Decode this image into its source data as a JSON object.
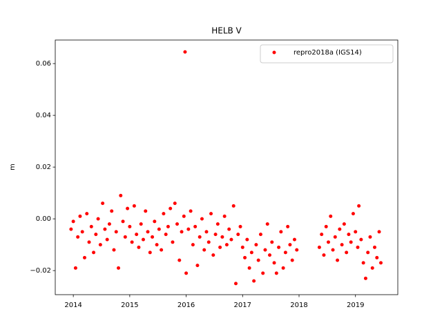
{
  "chart_data": {
    "type": "scatter",
    "title": "HELB V",
    "y_label": "m",
    "legend": "upper right",
    "grid": false,
    "xlim": [
      2013.68,
      2019.75
    ],
    "xticks": [
      2014,
      2015,
      2016,
      2017,
      2018,
      2019
    ],
    "ylim": [
      -0.0293,
      0.0691
    ],
    "yticks": [
      {
        "value": -0.02,
        "label": "−0.02"
      },
      {
        "value": 0,
        "label": "0.00"
      },
      0.02,
      0.04,
      0.06
    ],
    "series": [
      {
        "name": "repro2018a (IGS14)",
        "color": "#ff0000",
        "x": [
          2013.96,
          2014.0,
          2014.04,
          2014.08,
          2014.12,
          2014.16,
          2014.2,
          2014.24,
          2014.28,
          2014.32,
          2014.36,
          2014.4,
          2014.44,
          2014.48,
          2014.52,
          2014.56,
          2014.6,
          2014.64,
          2014.68,
          2014.72,
          2014.76,
          2014.8,
          2014.84,
          2014.88,
          2014.92,
          2014.96,
          2015.0,
          2015.04,
          2015.08,
          2015.12,
          2015.16,
          2015.2,
          2015.24,
          2015.28,
          2015.32,
          2015.36,
          2015.4,
          2015.44,
          2015.48,
          2015.52,
          2015.56,
          2015.6,
          2015.64,
          2015.68,
          2015.72,
          2015.76,
          2015.8,
          2015.84,
          2015.88,
          2015.92,
          2015.96,
          2015.98,
          2016.0,
          2016.04,
          2016.08,
          2016.12,
          2016.16,
          2016.2,
          2016.24,
          2016.28,
          2016.32,
          2016.36,
          2016.4,
          2016.44,
          2016.48,
          2016.52,
          2016.56,
          2016.6,
          2016.64,
          2016.68,
          2016.72,
          2016.76,
          2016.8,
          2016.84,
          2016.88,
          2016.92,
          2016.96,
          2017.0,
          2017.04,
          2017.08,
          2017.12,
          2017.16,
          2017.2,
          2017.24,
          2017.28,
          2017.32,
          2017.36,
          2017.4,
          2017.44,
          2017.48,
          2017.52,
          2017.56,
          2017.6,
          2017.64,
          2017.68,
          2017.72,
          2017.76,
          2017.8,
          2017.84,
          2017.88,
          2017.92,
          2017.96,
          2018.36,
          2018.4,
          2018.44,
          2018.48,
          2018.52,
          2018.56,
          2018.6,
          2018.64,
          2018.68,
          2018.72,
          2018.76,
          2018.8,
          2018.84,
          2018.88,
          2018.92,
          2018.96,
          2019.0,
          2019.04,
          2019.06,
          2019.1,
          2019.14,
          2019.18,
          2019.22,
          2019.26,
          2019.3,
          2019.34,
          2019.38,
          2019.42,
          2019.45
        ],
        "values": [
          -0.004,
          -0.001,
          -0.019,
          -0.007,
          0.001,
          -0.005,
          -0.015,
          0.002,
          -0.009,
          -0.003,
          -0.013,
          -0.006,
          0.0,
          -0.01,
          0.006,
          -0.004,
          -0.008,
          -0.002,
          0.003,
          -0.012,
          -0.005,
          -0.019,
          0.009,
          -0.001,
          -0.007,
          0.004,
          -0.003,
          -0.009,
          0.005,
          -0.006,
          -0.011,
          -0.002,
          -0.008,
          0.003,
          -0.005,
          -0.013,
          -0.007,
          -0.001,
          -0.01,
          -0.004,
          -0.012,
          0.002,
          -0.006,
          -0.003,
          0.004,
          -0.009,
          0.006,
          -0.002,
          -0.016,
          -0.005,
          0.001,
          0.0645,
          -0.021,
          -0.004,
          0.003,
          -0.01,
          -0.003,
          -0.018,
          -0.007,
          0.0,
          -0.012,
          -0.005,
          -0.009,
          0.002,
          -0.014,
          -0.006,
          -0.002,
          -0.011,
          -0.007,
          0.001,
          -0.01,
          -0.004,
          -0.008,
          0.005,
          -0.025,
          -0.006,
          -0.003,
          -0.011,
          -0.015,
          -0.008,
          -0.019,
          -0.013,
          -0.024,
          -0.01,
          -0.016,
          -0.006,
          -0.021,
          -0.012,
          -0.002,
          -0.014,
          -0.009,
          -0.017,
          -0.021,
          -0.011,
          -0.005,
          -0.019,
          -0.013,
          -0.003,
          -0.01,
          -0.016,
          -0.008,
          -0.012,
          -0.011,
          -0.006,
          -0.014,
          -0.003,
          -0.009,
          0.001,
          -0.012,
          -0.007,
          -0.016,
          -0.004,
          -0.01,
          -0.002,
          -0.013,
          -0.006,
          -0.009,
          0.002,
          -0.005,
          -0.011,
          0.005,
          -0.008,
          -0.017,
          -0.023,
          -0.013,
          -0.007,
          -0.019,
          -0.011,
          -0.015,
          -0.005,
          -0.017
        ]
      }
    ]
  }
}
